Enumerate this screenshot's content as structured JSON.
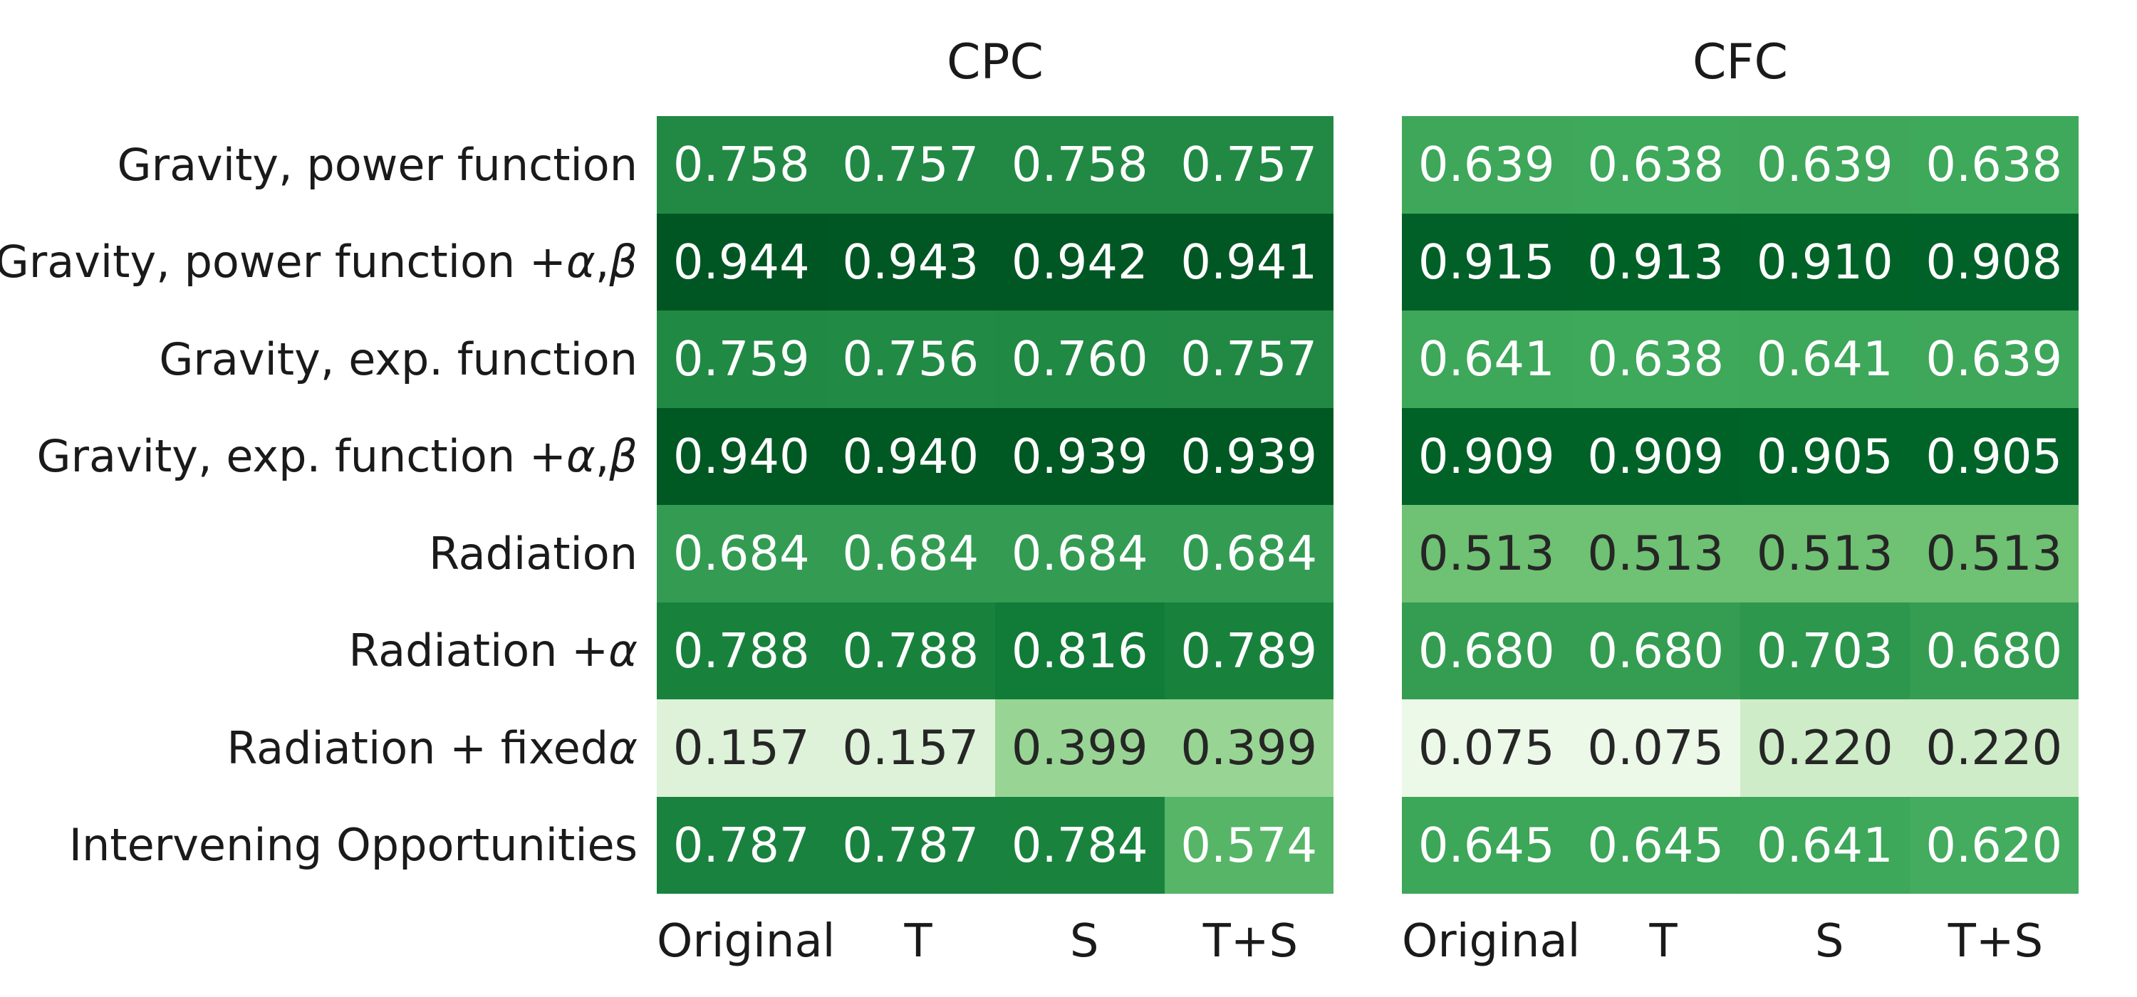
{
  "chart_data": {
    "type": "heatmap",
    "colormap": "Greens",
    "vmin": 0,
    "vmax": 1,
    "value_format_decimals": 3,
    "grid": false,
    "row_labels": [
      "Gravity, power function",
      "Gravity, power function + α, β",
      "Gravity, exp. function",
      "Gravity, exp. function + α, β",
      "Radiation",
      "Radiation + α",
      "Radiation + fixed α",
      "Intervening Opportunities"
    ],
    "col_labels": [
      "Original",
      "T",
      "S",
      "T+S"
    ],
    "panels": [
      {
        "title": "CPC",
        "values": [
          [
            0.758,
            0.757,
            0.758,
            0.757
          ],
          [
            0.944,
            0.943,
            0.942,
            0.941
          ],
          [
            0.759,
            0.756,
            0.76,
            0.757
          ],
          [
            0.94,
            0.94,
            0.939,
            0.939
          ],
          [
            0.684,
            0.684,
            0.684,
            0.684
          ],
          [
            0.788,
            0.788,
            0.816,
            0.789
          ],
          [
            0.157,
            0.157,
            0.399,
            0.399
          ],
          [
            0.787,
            0.787,
            0.784,
            0.574
          ]
        ]
      },
      {
        "title": "CFC",
        "values": [
          [
            0.639,
            0.638,
            0.639,
            0.638
          ],
          [
            0.915,
            0.913,
            0.91,
            0.908
          ],
          [
            0.641,
            0.638,
            0.641,
            0.639
          ],
          [
            0.909,
            0.909,
            0.905,
            0.905
          ],
          [
            0.513,
            0.513,
            0.513,
            0.513
          ],
          [
            0.68,
            0.68,
            0.703,
            0.68
          ],
          [
            0.075,
            0.075,
            0.22,
            0.22
          ],
          [
            0.645,
            0.645,
            0.641,
            0.62
          ]
        ]
      }
    ]
  },
  "colors": {
    "background": "#ffffff",
    "label_text": "#1a1a1a",
    "cell_text_light": "#ffffff",
    "cell_text_dark": "#262626",
    "colormap_stops": [
      {
        "t": 0.0,
        "c": "#f7fcf5"
      },
      {
        "t": 0.125,
        "c": "#e5f5e0"
      },
      {
        "t": 0.25,
        "c": "#c7e9c0"
      },
      {
        "t": 0.375,
        "c": "#a1d99b"
      },
      {
        "t": 0.5,
        "c": "#74c476"
      },
      {
        "t": 0.625,
        "c": "#41ab5d"
      },
      {
        "t": 0.75,
        "c": "#238b45"
      },
      {
        "t": 0.875,
        "c": "#006d2c"
      },
      {
        "t": 1.0,
        "c": "#00441b"
      }
    ]
  }
}
